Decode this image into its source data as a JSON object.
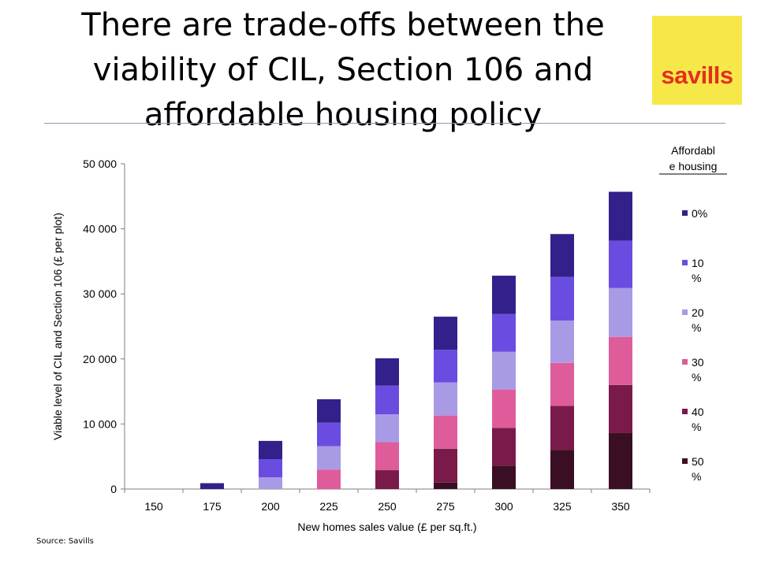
{
  "slide": {
    "title": "There are trade-offs between the viability of CIL, Section 106 and affordable housing policy",
    "source": "Source: Savills",
    "logo_text": "savills",
    "logo_colors": {
      "background": "#f7e84a",
      "text": "#e3301f"
    }
  },
  "chart_data": {
    "type": "bar",
    "stacked": true,
    "xlabel": "New homes sales value (£ per sq.ft.)",
    "ylabel": "Viable level of CIL and Section 106 (£ per plot)",
    "ylim": [
      0,
      50000
    ],
    "yticks": [
      0,
      10000,
      20000,
      30000,
      40000,
      50000
    ],
    "ytick_labels": [
      "0",
      "10 000",
      "20 000",
      "30 000",
      "40 000",
      "50 000"
    ],
    "grid": false,
    "categories": [
      "150",
      "175",
      "200",
      "225",
      "250",
      "275",
      "300",
      "325",
      "350"
    ],
    "legend": {
      "title": "Affordabl e housing",
      "title_lines": [
        "Affordabl",
        "e housing"
      ],
      "placement": "right",
      "order": [
        "0%",
        "10 %",
        "20 %",
        "30 %",
        "40 %",
        "50 %"
      ]
    },
    "series": [
      {
        "name": "50 %",
        "label_lines": [
          "50",
          "%"
        ],
        "color": "#3a0f24",
        "values": [
          0,
          0,
          0,
          0,
          0,
          1000,
          3600,
          6000,
          8600
        ]
      },
      {
        "name": "40 %",
        "label_lines": [
          "40",
          "%"
        ],
        "color": "#7a1a4a",
        "values": [
          0,
          0,
          0,
          0,
          2900,
          5200,
          5800,
          6800,
          7400
        ]
      },
      {
        "name": "30 %",
        "label_lines": [
          "30",
          "%"
        ],
        "color": "#df5c9b",
        "values": [
          0,
          0,
          0,
          3000,
          4300,
          5100,
          5900,
          6600,
          7400
        ]
      },
      {
        "name": "20 %",
        "label_lines": [
          "20",
          "%"
        ],
        "color": "#a99ae6",
        "values": [
          0,
          0,
          1800,
          3600,
          4300,
          5100,
          5800,
          6500,
          7500
        ]
      },
      {
        "name": "10 %",
        "label_lines": [
          "10",
          "%"
        ],
        "color": "#6a4de0",
        "values": [
          0,
          0,
          2800,
          3600,
          4400,
          5000,
          5800,
          6700,
          7300
        ]
      },
      {
        "name": "0%",
        "label_lines": [
          "0%"
        ],
        "color": "#33208a",
        "values": [
          0,
          900,
          2800,
          3600,
          4200,
          5100,
          5900,
          6600,
          7500
        ]
      }
    ]
  }
}
